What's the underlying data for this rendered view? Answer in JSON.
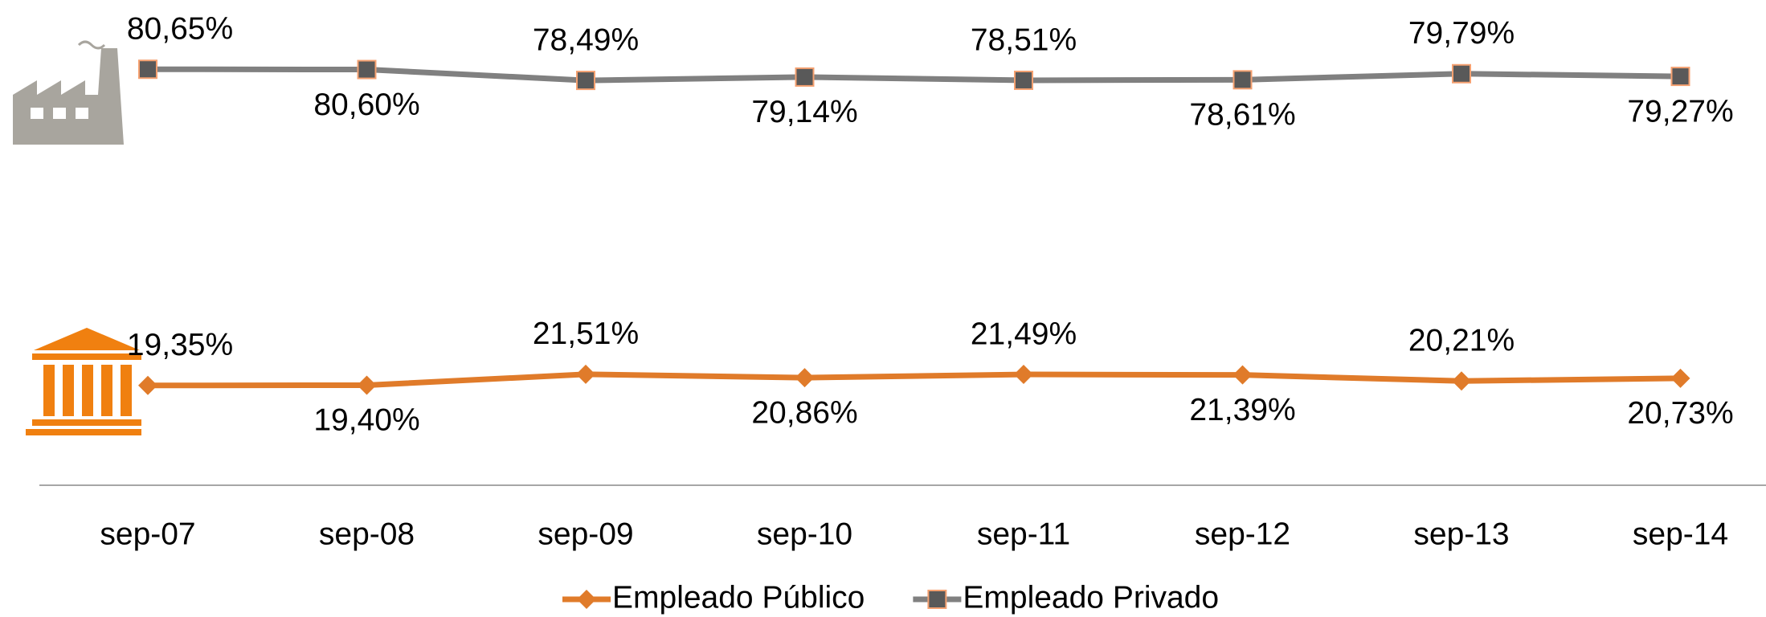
{
  "chart_data": {
    "type": "line",
    "categories": [
      "sep-07",
      "sep-08",
      "sep-09",
      "sep-10",
      "sep-11",
      "sep-12",
      "sep-13",
      "sep-14"
    ],
    "ylim": [
      0,
      100
    ],
    "series": [
      {
        "name": "Empleado Público",
        "color": "#e07b2a",
        "marker": "diamond",
        "values": [
          19.35,
          19.4,
          21.51,
          20.86,
          21.49,
          21.39,
          20.21,
          20.73
        ],
        "value_labels": [
          "19,35%",
          "19,40%",
          "21,51%",
          "20,86%",
          "21,49%",
          "21,39%",
          "20,21%",
          "20,73%"
        ]
      },
      {
        "name": "Empleado Privado",
        "color": "#808080",
        "marker": "square",
        "values": [
          80.65,
          80.6,
          78.49,
          79.14,
          78.51,
          78.61,
          79.79,
          79.27
        ],
        "value_labels": [
          "80,65%",
          "80,60%",
          "78,49%",
          "79,14%",
          "78,51%",
          "78,61%",
          "79,79%",
          "79,27%"
        ]
      }
    ]
  }
}
